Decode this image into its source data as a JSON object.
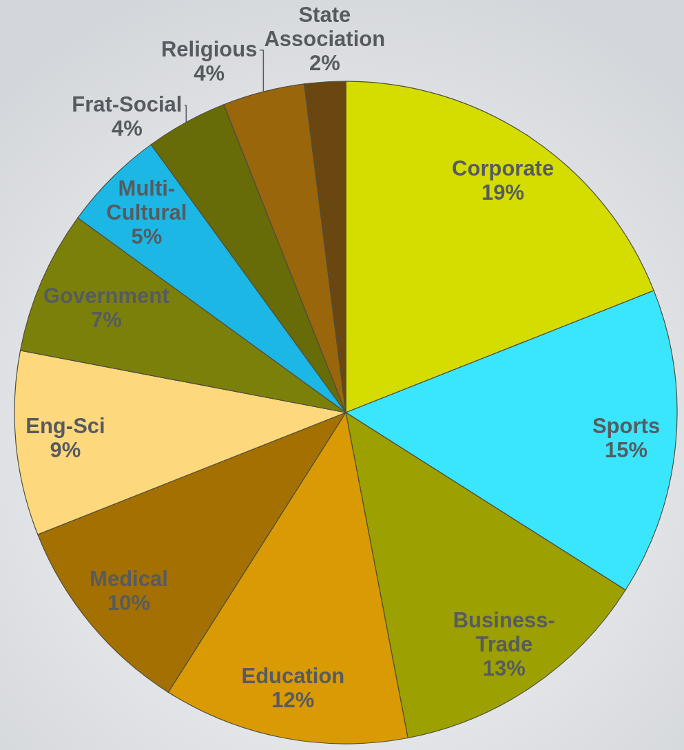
{
  "chart_data": {
    "type": "pie",
    "categories": [
      "Corporate",
      "Sports",
      "Business-Trade",
      "Education",
      "Medical",
      "Eng-Sci",
      "Government",
      "Multi-Cultural",
      "Frat-Social",
      "Religious",
      "State Association"
    ],
    "values": [
      19,
      15,
      13,
      12,
      10,
      9,
      7,
      5,
      4,
      4,
      2
    ],
    "colors": [
      "#d4dc00",
      "#3ae6fc",
      "#9ca000",
      "#d99a04",
      "#a47002",
      "#fed87c",
      "#7b800a",
      "#1cb7e4",
      "#676b08",
      "#9a660c",
      "#6a4610"
    ],
    "value_labels": [
      "19%",
      "15%",
      "13%",
      "12%",
      "10%",
      "9%",
      "7%",
      "5%",
      "4%",
      "4%",
      "2%"
    ]
  }
}
